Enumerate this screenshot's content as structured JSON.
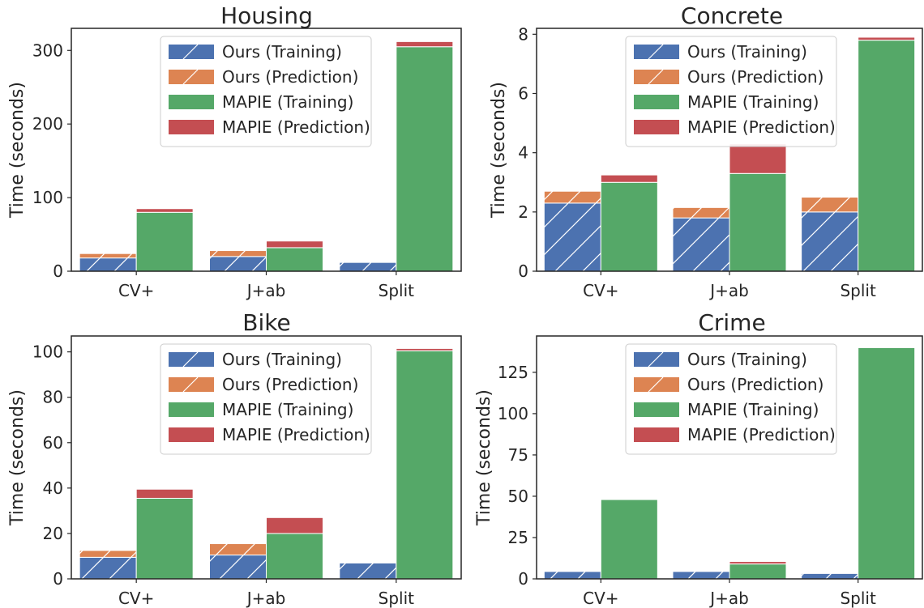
{
  "colors": {
    "ours_training": "#4c72b0",
    "ours_prediction": "#dd8452",
    "mapie_training": "#55a868",
    "mapie_prediction": "#c44e52",
    "hatch": "#ffffff",
    "axes": "#262626"
  },
  "legend": {
    "ours_training": "Ours (Training)",
    "ours_prediction": "Ours (Prediction)",
    "mapie_training": "MAPIE (Training)",
    "mapie_prediction": "MAPIE (Prediction)"
  },
  "chart_data": [
    {
      "type": "bar",
      "title": "Housing",
      "ylabel": "Time (seconds)",
      "categories": [
        "CV+",
        "J+ab",
        "Split"
      ],
      "ylim": [
        0,
        330
      ],
      "yticks": [
        0,
        100,
        200,
        300
      ],
      "legend_position": "top-center",
      "stacks": [
        {
          "name": "Ours",
          "series": [
            {
              "name": "Ours (Training)",
              "key": "ours_training",
              "values": [
                18,
                20,
                12
              ]
            },
            {
              "name": "Ours (Prediction)",
              "key": "ours_prediction",
              "values": [
                6,
                8,
                0.5
              ]
            }
          ]
        },
        {
          "name": "MAPIE",
          "series": [
            {
              "name": "MAPIE (Training)",
              "key": "mapie_training",
              "values": [
                80,
                32,
                305
              ]
            },
            {
              "name": "MAPIE (Prediction)",
              "key": "mapie_prediction",
              "values": [
                5,
                9,
                7
              ]
            }
          ]
        }
      ]
    },
    {
      "type": "bar",
      "title": "Concrete",
      "ylabel": "Time (seconds)",
      "categories": [
        "CV+",
        "J+ab",
        "Split"
      ],
      "ylim": [
        0,
        8.2
      ],
      "yticks": [
        0,
        2,
        4,
        6,
        8
      ],
      "legend_position": "top-center",
      "stacks": [
        {
          "name": "Ours",
          "series": [
            {
              "name": "Ours (Training)",
              "key": "ours_training",
              "values": [
                2.3,
                1.8,
                2.0
              ]
            },
            {
              "name": "Ours (Prediction)",
              "key": "ours_prediction",
              "values": [
                0.4,
                0.35,
                0.5
              ]
            }
          ]
        },
        {
          "name": "MAPIE",
          "series": [
            {
              "name": "MAPIE (Training)",
              "key": "mapie_training",
              "values": [
                3.0,
                3.3,
                7.8
              ]
            },
            {
              "name": "MAPIE (Prediction)",
              "key": "mapie_prediction",
              "values": [
                0.25,
                1.0,
                0.1
              ]
            }
          ]
        }
      ]
    },
    {
      "type": "bar",
      "title": "Bike",
      "ylabel": "Time (seconds)",
      "categories": [
        "CV+",
        "J+ab",
        "Split"
      ],
      "ylim": [
        0,
        107
      ],
      "yticks": [
        0,
        20,
        40,
        60,
        80,
        100
      ],
      "legend_position": "top-center",
      "stacks": [
        {
          "name": "Ours",
          "series": [
            {
              "name": "Ours (Training)",
              "key": "ours_training",
              "values": [
                9.5,
                10.5,
                7
              ]
            },
            {
              "name": "Ours (Prediction)",
              "key": "ours_prediction",
              "values": [
                3,
                5,
                0.3
              ]
            }
          ]
        },
        {
          "name": "MAPIE",
          "series": [
            {
              "name": "MAPIE (Training)",
              "key": "mapie_training",
              "values": [
                35.5,
                20,
                100.5
              ]
            },
            {
              "name": "MAPIE (Prediction)",
              "key": "mapie_prediction",
              "values": [
                4,
                7,
                1
              ]
            }
          ]
        }
      ]
    },
    {
      "type": "bar",
      "title": "Crime",
      "ylabel": "Time (seconds)",
      "categories": [
        "CV+",
        "J+ab",
        "Split"
      ],
      "ylim": [
        0,
        147
      ],
      "yticks": [
        0,
        25,
        50,
        75,
        100,
        125
      ],
      "legend_position": "top-center",
      "stacks": [
        {
          "name": "Ours",
          "series": [
            {
              "name": "Ours (Training)",
              "key": "ours_training",
              "values": [
                4.5,
                4.5,
                3.3
              ]
            },
            {
              "name": "Ours (Prediction)",
              "key": "ours_prediction",
              "values": [
                0.3,
                0.3,
                0.3
              ]
            }
          ]
        },
        {
          "name": "MAPIE",
          "series": [
            {
              "name": "MAPIE (Training)",
              "key": "mapie_training",
              "values": [
                48,
                9,
                140
              ]
            },
            {
              "name": "MAPIE (Prediction)",
              "key": "mapie_prediction",
              "values": [
                0.3,
                1.5,
                0.3
              ]
            }
          ]
        }
      ]
    }
  ]
}
